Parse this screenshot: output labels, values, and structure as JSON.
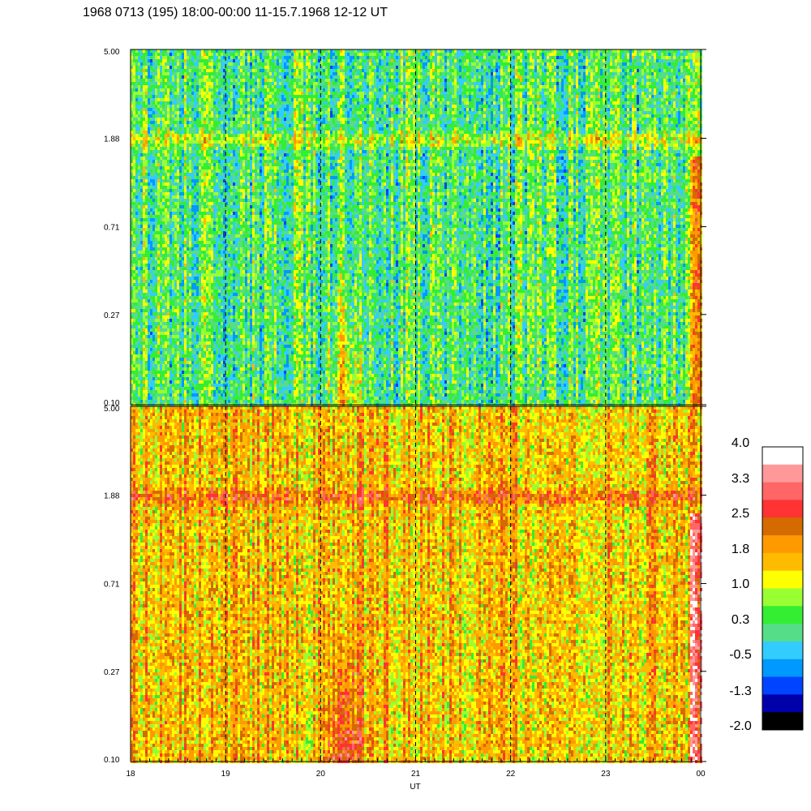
{
  "chart_data": {
    "type": "heatmap",
    "title": "1968 0713 (195) 18:00-00:00 11-15.7.1968  12-12 UT",
    "xlabel": "UT",
    "x_ticks": [
      "18",
      "19",
      "20",
      "21",
      "22",
      "23",
      "00"
    ],
    "x_range_hours": [
      18,
      24
    ],
    "y_scale": "log",
    "y_range": [
      0.1,
      5.0
    ],
    "panels": [
      {
        "y_ticks": [
          "5.00",
          "1.88",
          "0.71",
          "0.27",
          "0.10"
        ],
        "palette_center": 0.3
      },
      {
        "y_ticks": [
          "5.00",
          "1.88",
          "0.71",
          "0.27",
          "0.10"
        ],
        "palette_center": 1.6
      }
    ],
    "colorbar": {
      "labels": [
        "4.0",
        "3.3",
        "2.5",
        "1.8",
        "1.0",
        "0.3",
        "-0.5",
        "-1.3",
        "-2.0"
      ],
      "colors": [
        "#ffffff",
        "#ff9999",
        "#ff6666",
        "#ff3333",
        "#d46a00",
        "#ff9900",
        "#ffbb00",
        "#ffff00",
        "#99ff33",
        "#33ee33",
        "#55dd88",
        "#33ccff",
        "#0099ff",
        "#0044ff",
        "#0000aa",
        "#000000"
      ]
    }
  }
}
